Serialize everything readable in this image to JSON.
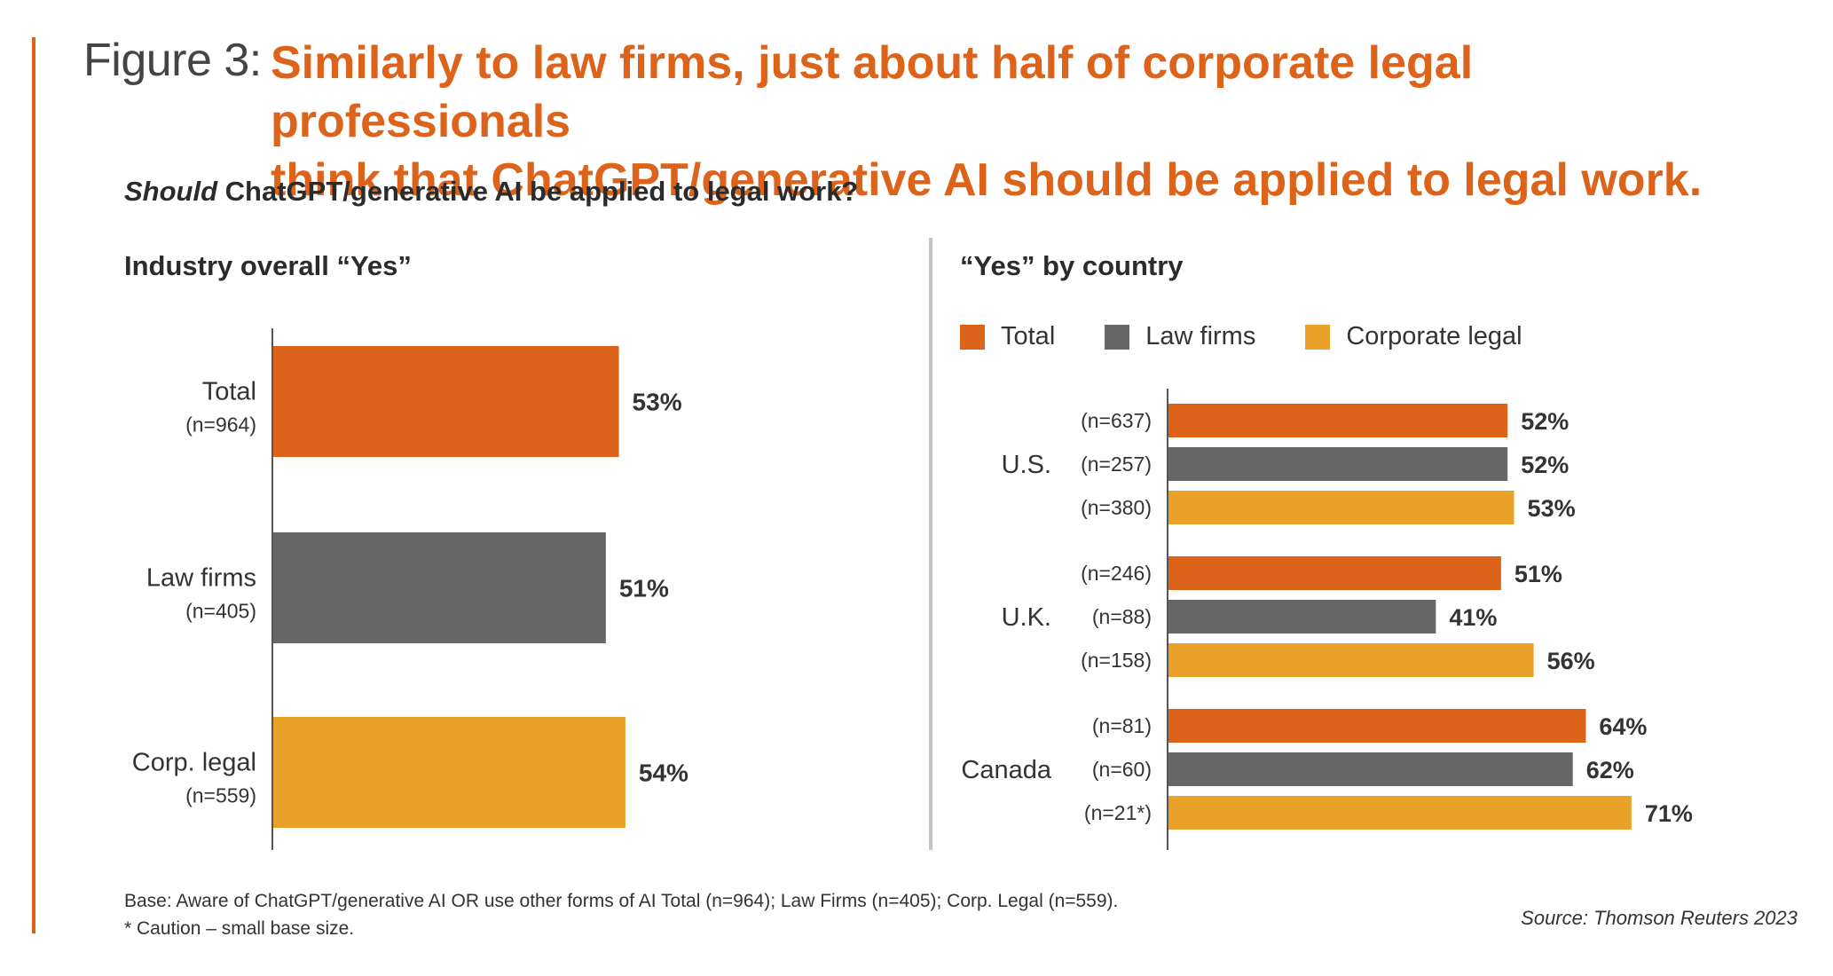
{
  "figure_label": "Figure 3:",
  "headline_line1": "Similarly to law firms, just about half of corporate legal professionals",
  "headline_line2": "think that ChatGPT/generative AI should be applied to legal work.",
  "question_em": "Should",
  "question_rest": " ChatGPT/generative AI be applied to legal work?",
  "colors": {
    "accent": "#dc6319",
    "total": "#dc6319",
    "law_firms": "#666666",
    "corporate": "#e9a227",
    "axis": "#555555"
  },
  "legend": [
    {
      "label": "Total",
      "color": "#dc6319"
    },
    {
      "label": "Law firms",
      "color": "#666666"
    },
    {
      "label": "Corporate legal",
      "color": "#e9a227"
    }
  ],
  "footnote_line1": "Base: Aware of ChatGPT/generative AI OR use other forms of AI Total (n=964); Law Firms (n=405); Corp. Legal (n=559).",
  "footnote_line2": " * Caution – small base size.",
  "source": "Source: Thomson Reuters 2023",
  "chart_data": [
    {
      "type": "bar",
      "orientation": "horizontal",
      "title": "Industry overall “Yes”",
      "categories": [
        "Total",
        "Law firms",
        "Corp. legal"
      ],
      "sample_sizes": [
        "(n=964)",
        "(n=405)",
        "(n=559)"
      ],
      "values": [
        53,
        51,
        54
      ],
      "labels": [
        "53%",
        "51%",
        "54%"
      ],
      "series_colors": [
        "#dc6319",
        "#666666",
        "#e9a227"
      ],
      "xlim": [
        0,
        100
      ]
    },
    {
      "type": "bar",
      "orientation": "horizontal",
      "title": "“Yes” by country",
      "categories": [
        "U.S.",
        "U.K.",
        "Canada"
      ],
      "series": [
        {
          "name": "Total",
          "values": [
            52,
            51,
            64
          ],
          "labels": [
            "52%",
            "51%",
            "64%"
          ],
          "n": [
            "(n=637)",
            "(n=246)",
            "(n=81)"
          ]
        },
        {
          "name": "Law firms",
          "values": [
            52,
            41,
            62
          ],
          "labels": [
            "52%",
            "41%",
            "62%"
          ],
          "n": [
            "(n=257)",
            "(n=88)",
            "(n=60)"
          ]
        },
        {
          "name": "Corporate legal",
          "values": [
            53,
            56,
            71
          ],
          "labels": [
            "53%",
            "56%",
            "71%"
          ],
          "n": [
            "(n=380)",
            "(n=158)",
            "(n=21*)"
          ]
        }
      ],
      "xlim": [
        0,
        100
      ]
    }
  ]
}
